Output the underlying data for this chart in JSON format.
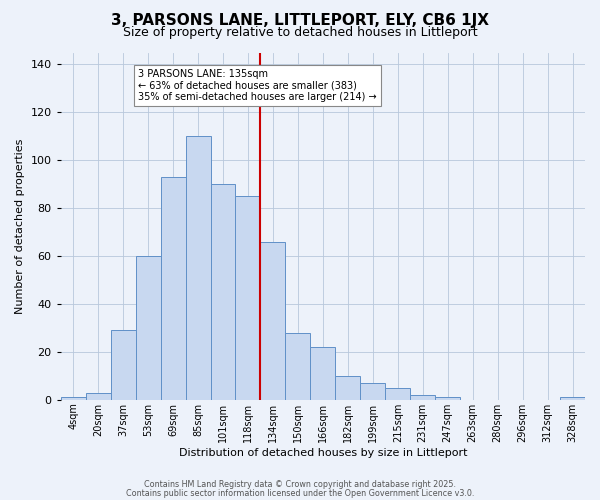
{
  "title": "3, PARSONS LANE, LITTLEPORT, ELY, CB6 1JX",
  "subtitle": "Size of property relative to detached houses in Littleport",
  "xlabel": "Distribution of detached houses by size in Littleport",
  "ylabel": "Number of detached properties",
  "bar_labels": [
    "4sqm",
    "20sqm",
    "37sqm",
    "53sqm",
    "69sqm",
    "85sqm",
    "101sqm",
    "118sqm",
    "134sqm",
    "150sqm",
    "166sqm",
    "182sqm",
    "199sqm",
    "215sqm",
    "231sqm",
    "247sqm",
    "263sqm",
    "280sqm",
    "296sqm",
    "312sqm",
    "328sqm"
  ],
  "bar_values": [
    1,
    3,
    29,
    60,
    93,
    110,
    90,
    85,
    66,
    28,
    22,
    10,
    7,
    5,
    2,
    1,
    0,
    0,
    0,
    0,
    1
  ],
  "bar_color": "#c8d8f0",
  "bar_edge_color": "#6090c8",
  "vline_idx": 8,
  "vline_color": "#cc0000",
  "annotation_title": "3 PARSONS LANE: 135sqm",
  "annotation_line1": "← 63% of detached houses are smaller (383)",
  "annotation_line2": "35% of semi-detached houses are larger (214) →",
  "annotation_box_color": "#ffffff",
  "annotation_box_edge": "#888888",
  "ylim": [
    0,
    145
  ],
  "yticks": [
    0,
    20,
    40,
    60,
    80,
    100,
    120,
    140
  ],
  "footer1": "Contains HM Land Registry data © Crown copyright and database right 2025.",
  "footer2": "Contains public sector information licensed under the Open Government Licence v3.0.",
  "bg_color": "#edf2fa",
  "title_fontsize": 11,
  "subtitle_fontsize": 9,
  "tick_fontsize": 7,
  "ylabel_fontsize": 8,
  "xlabel_fontsize": 8
}
